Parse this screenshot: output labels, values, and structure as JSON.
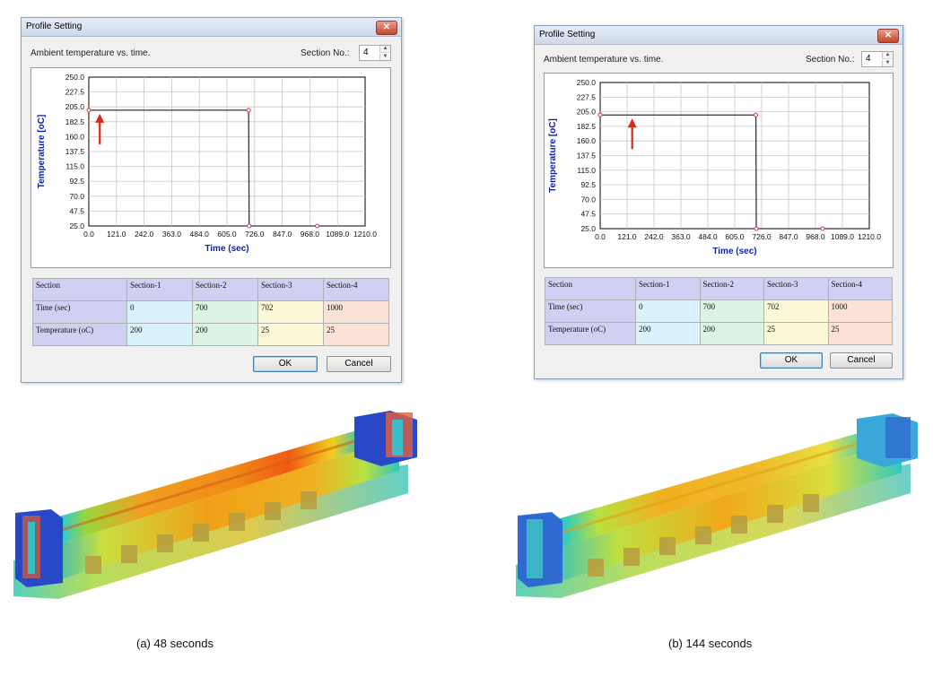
{
  "dialogs": [
    {
      "title": "Profile Setting",
      "close_label": "✕",
      "description": "Ambient temperature vs. time.",
      "section_no_label": "Section No.:",
      "section_no_value": "4",
      "ok_label": "OK",
      "cancel_label": "Cancel",
      "table": {
        "rows": [
          [
            "Section",
            "Section-1",
            "Section-2",
            "Section-3",
            "Section-4"
          ],
          [
            "Time (sec)",
            "0",
            "700",
            "702",
            "1000"
          ],
          [
            "Temperature (oC)",
            "200",
            "200",
            "25",
            "25"
          ]
        ]
      }
    },
    {
      "title": "Profile Setting",
      "close_label": "✕",
      "description": "Ambient temperature vs. time.",
      "section_no_label": "Section No.:",
      "section_no_value": "4",
      "ok_label": "OK",
      "cancel_label": "Cancel",
      "table": {
        "rows": [
          [
            "Section",
            "Section-1",
            "Section-2",
            "Section-3",
            "Section-4"
          ],
          [
            "Time (sec)",
            "0",
            "700",
            "702",
            "1000"
          ],
          [
            "Temperature (oC)",
            "200",
            "200",
            "25",
            "25"
          ]
        ]
      }
    }
  ],
  "chart_data": [
    {
      "type": "line",
      "xlabel": "Time (sec)",
      "ylabel": "Temperature [oC]",
      "xlim": [
        0,
        1210
      ],
      "ylim": [
        25,
        250
      ],
      "xticks": [
        "0.0",
        "121.0",
        "242.0",
        "363.0",
        "484.0",
        "605.0",
        "726.0",
        "847.0",
        "968.0",
        "1089.0",
        "1210.0"
      ],
      "yticks": [
        "25.0",
        "47.5",
        "70.0",
        "92.5",
        "115.0",
        "137.5",
        "160.0",
        "182.5",
        "205.0",
        "227.5",
        "250.0"
      ],
      "grid": true,
      "x": [
        0,
        700,
        702,
        1000
      ],
      "y": [
        200,
        200,
        25,
        25
      ],
      "marker_time": 48
    },
    {
      "type": "line",
      "xlabel": "Time (sec)",
      "ylabel": "Temperature [oC]",
      "xlim": [
        0,
        1210
      ],
      "ylim": [
        25,
        250
      ],
      "xticks": [
        "0.0",
        "121.0",
        "242.0",
        "363.0",
        "484.0",
        "605.0",
        "726.0",
        "847.0",
        "968.0",
        "1089.0",
        "1210.0"
      ],
      "yticks": [
        "25.0",
        "47.5",
        "70.0",
        "92.5",
        "115.0",
        "137.5",
        "160.0",
        "182.5",
        "205.0",
        "227.5",
        "250.0"
      ],
      "grid": true,
      "x": [
        0,
        700,
        702,
        1000
      ],
      "y": [
        200,
        200,
        25,
        25
      ],
      "marker_time": 144
    }
  ],
  "captions": [
    "(a) 48 seconds",
    "(b) 144 seconds"
  ],
  "colors": {
    "axis_title": "#0b1fa8",
    "line": "#333333",
    "marker_arrow": "#e0261b",
    "row_header": "#cfd0f2",
    "section_colors": [
      "#d8f3fb",
      "#dcf5e2",
      "#fbf8d8",
      "#fbe2d6"
    ]
  },
  "render_images": [
    {
      "name": "temperature-contour-beam-48s"
    },
    {
      "name": "temperature-contour-beam-144s"
    }
  ]
}
